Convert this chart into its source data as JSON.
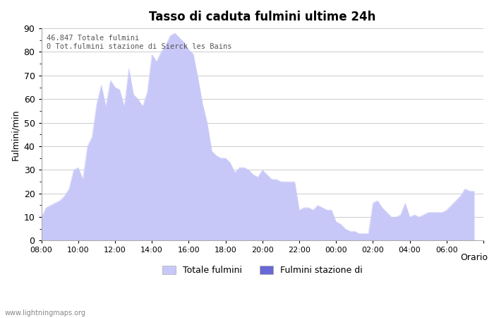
{
  "title": "Tasso di caduta fulmini ultime 24h",
  "ylabel": "Fulmini/min",
  "xlabel": "Orario",
  "annotation_line1": "46.847 Totale fulmini",
  "annotation_line2": "0 Tot.fulmini stazione di Sierck les Bains",
  "legend_label1": "Totale fulmini",
  "legend_label2": "Fulmini stazione di",
  "fill_color1": "#c8c8f8",
  "fill_color2": "#6868d8",
  "watermark": "www.lightningmaps.org",
  "ylim": [
    0,
    90
  ],
  "xtick_labels": [
    "08:00",
    "10:00",
    "12:00",
    "14:00",
    "16:00",
    "18:00",
    "20:00",
    "22:00",
    "00:00",
    "02:00",
    "04:00",
    "06:00",
    ""
  ],
  "values": [
    10,
    14,
    15,
    16,
    17,
    19,
    22,
    30,
    31,
    26,
    40,
    44,
    58,
    66,
    57,
    68,
    65,
    64,
    57,
    73,
    62,
    60,
    57,
    63,
    79,
    76,
    80,
    83,
    87,
    88,
    86,
    84,
    81,
    79,
    69,
    58,
    50,
    38,
    36,
    35,
    35,
    33,
    29,
    31,
    31,
    30,
    28,
    27,
    30,
    28,
    26,
    26,
    25,
    25,
    25,
    25,
    13,
    14,
    14,
    13,
    15,
    14,
    13,
    13,
    8,
    7,
    5,
    4,
    4,
    3,
    3,
    3,
    16,
    17,
    14,
    12,
    10,
    10,
    11,
    16,
    10,
    11,
    10,
    11,
    12,
    12,
    12,
    12,
    13,
    15,
    17,
    19,
    22,
    21,
    21
  ]
}
